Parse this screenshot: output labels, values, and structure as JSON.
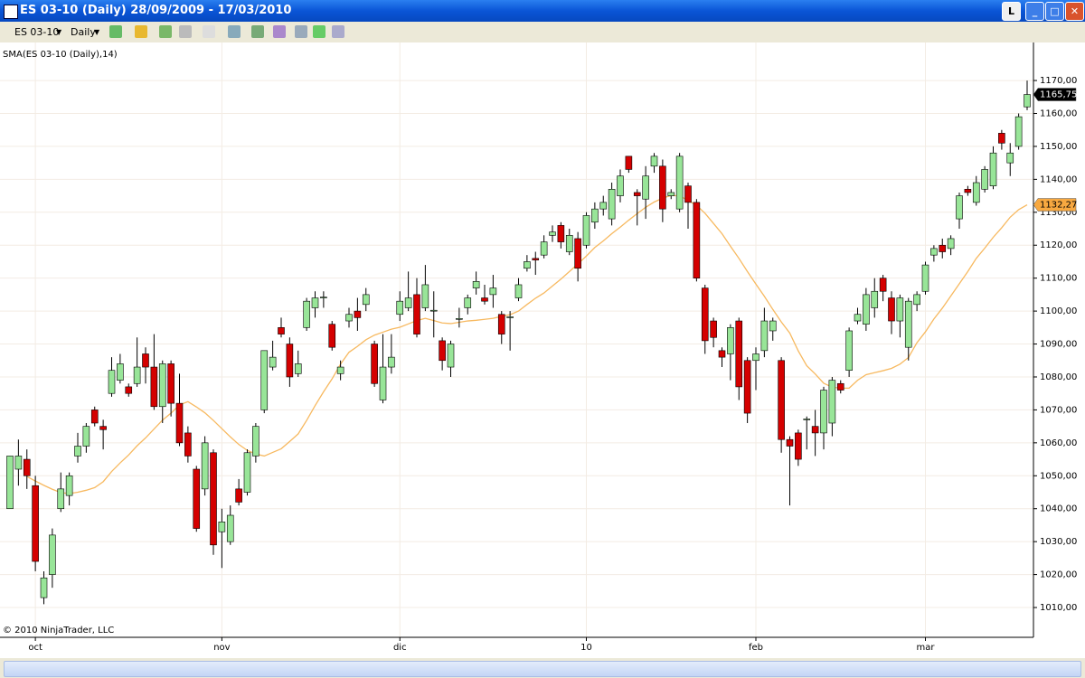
{
  "window": {
    "title": "ES 03-10 (Daily)  28/09/2009 - 17/03/2010",
    "button": "L"
  },
  "toolbar": {
    "instrument": "ES 03-10",
    "interval": "Daily"
  },
  "chart_data": {
    "type": "candlestick",
    "copyright": "© 2010 NinjaTrader, LLC",
    "categories": [
      null,
      null,
      null,
      "oct",
      null,
      null,
      null,
      null,
      null,
      null,
      null,
      null,
      null,
      null,
      null,
      null,
      null,
      null,
      null,
      null,
      null,
      null,
      null,
      null,
      null,
      "nov",
      null,
      null,
      null,
      null,
      null,
      null,
      null,
      null,
      null,
      null,
      null,
      null,
      null,
      null,
      null,
      null,
      null,
      null,
      null,
      null,
      "dic",
      null,
      null,
      null,
      null,
      null,
      null,
      null,
      null,
      null,
      null,
      null,
      null,
      null,
      null,
      null,
      null,
      null,
      null,
      null,
      null,
      null,
      "10",
      null,
      null,
      null,
      null,
      null,
      null,
      null,
      null,
      null,
      null,
      null,
      null,
      null,
      null,
      null,
      null,
      null,
      null,
      null,
      "feb",
      null,
      null,
      null,
      null,
      null,
      null,
      null,
      null,
      null,
      null,
      null,
      null,
      null,
      null,
      null,
      null,
      null,
      null,
      null,
      "mar",
      null,
      null,
      null,
      null,
      null,
      null,
      null,
      null,
      null,
      null,
      null,
      null
    ],
    "open": [
      1040,
      1052,
      1055,
      1047,
      1013,
      1020,
      1040,
      1044,
      1056,
      1059,
      1070,
      1065,
      1075,
      1079,
      1077,
      1078,
      1087,
      1083,
      1071,
      1084,
      1072,
      1063,
      1052,
      1046,
      1057,
      1033,
      1030,
      1046,
      1045,
      1056,
      1070,
      1083,
      1095,
      1090,
      1081,
      1095,
      1101,
      1104,
      1096,
      1081,
      1097,
      1100,
      1102,
      1090,
      1073,
      1083,
      1099,
      1101,
      1105,
      1101,
      1100,
      1091,
      1083,
      1097.5,
      1101,
      1107,
      1104,
      1105,
      1099,
      1098,
      1104,
      1113,
      1116,
      1117,
      1123,
      1126,
      1118,
      1122,
      1120,
      1127,
      1131,
      1128,
      1135,
      1147,
      1136,
      1134,
      1144,
      1144,
      1135,
      1131,
      1138,
      1133,
      1107,
      1097,
      1088,
      1087,
      1097,
      1085,
      1085,
      1088,
      1094,
      1085,
      1061,
      1063,
      1067,
      1065,
      1063,
      1066,
      1078,
      1082,
      1097,
      1096,
      1101,
      1110,
      1104,
      1097,
      1089,
      1102,
      1106,
      1117,
      1120,
      1119,
      1128,
      1137,
      1133,
      1137,
      1138,
      1154,
      1145,
      1150,
      1162
    ],
    "high": [
      1056,
      1061,
      1058,
      1050,
      1021,
      1034,
      1051,
      1051,
      1063,
      1066,
      1071,
      1067,
      1086,
      1087,
      1078,
      1092,
      1089,
      1093,
      1085,
      1085,
      1081,
      1065,
      1053,
      1062,
      1058,
      1040,
      1041,
      1049,
      1058,
      1066,
      1088,
      1091,
      1098,
      1092,
      1088,
      1104,
      1106,
      1106,
      1097,
      1085,
      1101,
      1104,
      1107,
      1091,
      1093,
      1093,
      1106,
      1112,
      1110,
      1114,
      1106,
      1092,
      1091,
      1101,
      1105,
      1112,
      1108,
      1111,
      1100,
      1100,
      1110,
      1117,
      1118,
      1123,
      1126,
      1127,
      1125,
      1124,
      1130,
      1133,
      1135,
      1139,
      1143,
      1147,
      1137,
      1144,
      1148,
      1146,
      1137,
      1148,
      1139,
      1134,
      1108,
      1098,
      1089,
      1096,
      1098,
      1086,
      1089,
      1101,
      1098,
      1086,
      1062,
      1064,
      1068,
      1070,
      1077,
      1080,
      1079,
      1095,
      1101,
      1107,
      1110,
      1111,
      1106,
      1105,
      1104,
      1106,
      1115,
      1120,
      1122,
      1123,
      1136,
      1138,
      1141,
      1144,
      1150,
      1155,
      1151,
      1160,
      1170
    ],
    "low": [
      1040,
      1047,
      1046,
      1021,
      1011,
      1016,
      1039,
      1041,
      1054,
      1057,
      1065,
      1058,
      1074,
      1078,
      1074,
      1077,
      1078,
      1070,
      1066,
      1068,
      1059,
      1054,
      1033,
      1044,
      1026,
      1022,
      1029,
      1041,
      1044,
      1054,
      1069,
      1082,
      1092,
      1077,
      1080,
      1094,
      1098,
      1101,
      1088,
      1079,
      1095,
      1094,
      1100,
      1077,
      1072,
      1081,
      1097,
      1100,
      1092,
      1100,
      1092,
      1082,
      1080,
      1095,
      1099,
      1105,
      1102,
      1101,
      1090,
      1088,
      1103,
      1112,
      1111,
      1116,
      1121,
      1119,
      1117,
      1109,
      1119,
      1125,
      1129,
      1126,
      1133,
      1142,
      1126,
      1128,
      1142,
      1127,
      1134,
      1130,
      1125,
      1109,
      1087,
      1089,
      1083,
      1079,
      1073,
      1066,
      1076,
      1086,
      1091,
      1057,
      1041,
      1053,
      1058,
      1056,
      1058,
      1062,
      1075,
      1080,
      1096,
      1094,
      1098,
      1103,
      1093,
      1092,
      1085,
      1100,
      1105,
      1115,
      1116,
      1117,
      1125,
      1135,
      1132,
      1136,
      1137,
      1149,
      1141,
      1149,
      1161
    ],
    "close": [
      1056,
      1056,
      1050,
      1024,
      1019,
      1032,
      1046,
      1050,
      1059,
      1065,
      1066,
      1064,
      1082,
      1084,
      1075,
      1083,
      1083,
      1071,
      1084,
      1072,
      1060,
      1056,
      1034,
      1060,
      1029,
      1036,
      1038,
      1042,
      1057,
      1065,
      1088,
      1086,
      1093,
      1080,
      1084,
      1103,
      1104,
      1104.25,
      1089,
      1083,
      1099,
      1098,
      1105,
      1078,
      1083,
      1086,
      1103,
      1104,
      1093,
      1108,
      1100.25,
      1085,
      1090,
      1097.75,
      1104,
      1109,
      1103,
      1107,
      1093,
      1098.25,
      1108,
      1115,
      1115.5,
      1121,
      1124,
      1121,
      1123,
      1113,
      1129,
      1131,
      1133,
      1137,
      1141,
      1143,
      1135,
      1141,
      1147,
      1131,
      1136,
      1147,
      1133,
      1110,
      1091,
      1092,
      1086,
      1095,
      1077,
      1069,
      1087,
      1097,
      1097,
      1061,
      1059,
      1055,
      1067.25,
      1063,
      1076,
      1079,
      1076,
      1094,
      1099,
      1105,
      1106,
      1106,
      1097,
      1104,
      1103,
      1105,
      1114,
      1119,
      1118,
      1122,
      1135,
      1136,
      1139,
      1143,
      1148,
      1151,
      1148,
      1159,
      1165.75
    ],
    "up_color": "#98e598",
    "down_color": "#d40000",
    "series": [
      {
        "name": "SMA(ES 03-10 (Daily),14)",
        "color": "#f7b960",
        "values": [
          null,
          null,
          1049.8,
          1048.4,
          1047.1,
          1045.9,
          1044.9,
          1044.6,
          1045.0,
          1045.6,
          1046.4,
          1048.2,
          1051.3,
          1053.9,
          1056.3,
          1059.1,
          1061.5,
          1064.2,
          1066.9,
          1069.0,
          1071.5,
          1072.5,
          1070.9,
          1069.1,
          1066.8,
          1064.3,
          1061.8,
          1059.5,
          1057.7,
          1056.6,
          1056.0,
          1057.1,
          1058.2,
          1060.4,
          1062.7,
          1066.8,
          1071.3,
          1075.5,
          1079.4,
          1083.9,
          1087.5,
          1089.3,
          1091.3,
          1092.7,
          1093.6,
          1094.5,
          1095.1,
          1096.1,
          1097.1,
          1097.8,
          1097.1,
          1096.4,
          1096.2,
          1096.6,
          1097.0,
          1097.2,
          1097.5,
          1097.8,
          1098.4,
          1098.9,
          1100.0,
          1102.0,
          1103.9,
          1105.5,
          1107.6,
          1109.7,
          1112.0,
          1114.3,
          1116.7,
          1119.3,
          1121.3,
          1123.5,
          1125.5,
          1127.6,
          1129.6,
          1131.5,
          1133.1,
          1134.3,
          1135.1,
          1135.0,
          1133.6,
          1132.1,
          1129.7,
          1126.6,
          1123.5,
          1119.7,
          1116.0,
          1112.0,
          1108.2,
          1104.5,
          1100.5,
          1096.7,
          1093.3,
          1087.9,
          1083.4,
          1080.9,
          1078.1,
          1076.9,
          1076.6,
          1076.6,
          1079.0,
          1080.7,
          1081.3,
          1081.9,
          1082.6,
          1083.9,
          1085.9,
          1090.4,
          1093.7,
          1097.6,
          1100.9,
          1104.6,
          1108.3,
          1112.0,
          1116.0,
          1119.1,
          1122.4,
          1125.3,
          1128.5,
          1130.8,
          1132.27
        ]
      }
    ],
    "last_labels": [
      {
        "value": 1165.75,
        "label": "1165,75",
        "color": "#000000",
        "text_color": "#ffffff"
      },
      {
        "value": 1132.27,
        "label": "1132,27",
        "color": "#f7a840",
        "text_color": "#000000"
      }
    ],
    "ylim": [
      1001.5,
      1178.8
    ],
    "yticks": [
      {
        "value": 1010,
        "label": "1010,00"
      },
      {
        "value": 1020,
        "label": "1020,00"
      },
      {
        "value": 1030,
        "label": "1030,00"
      },
      {
        "value": 1040,
        "label": "1040,00"
      },
      {
        "value": 1050,
        "label": "1050,00"
      },
      {
        "value": 1060,
        "label": "1060,00"
      },
      {
        "value": 1070,
        "label": "1070,00"
      },
      {
        "value": 1080,
        "label": "1080,00"
      },
      {
        "value": 1090,
        "label": "1090,00"
      },
      {
        "value": 1100,
        "label": "1100,00"
      },
      {
        "value": 1110,
        "label": "1110,00"
      },
      {
        "value": 1120,
        "label": "1120,00"
      },
      {
        "value": 1130,
        "label": "1130,00"
      },
      {
        "value": 1140,
        "label": "1140,00"
      },
      {
        "value": 1150,
        "label": "1150,00"
      },
      {
        "value": 1160,
        "label": "1160,00"
      },
      {
        "value": 1170,
        "label": "1170,00"
      }
    ],
    "grid": true
  }
}
